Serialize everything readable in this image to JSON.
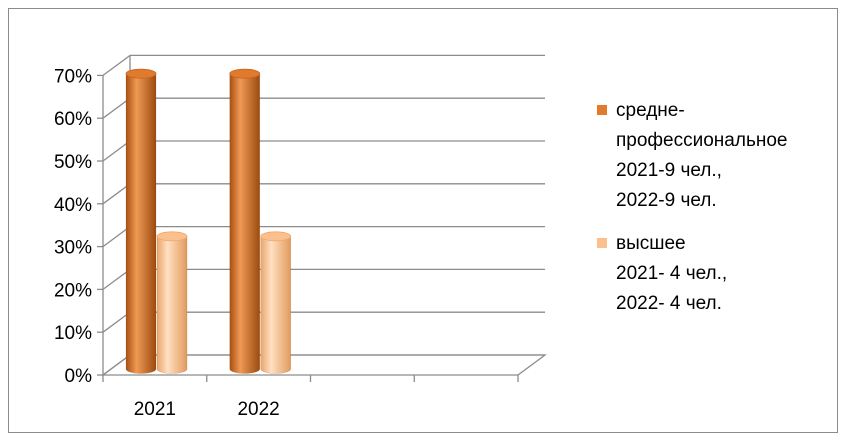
{
  "chart_data": {
    "type": "bar",
    "style": "3d-cylinder",
    "categories": [
      "2021",
      "2022"
    ],
    "series": [
      {
        "name_lines": [
          "средне-",
          "профессиональное",
          "2021-9 чел.,",
          "2022-9 чел."
        ],
        "values": [
          69,
          69
        ],
        "color": "#e07b2d"
      },
      {
        "name_lines": [
          "высшее",
          "2021- 4 чел.,",
          "2022- 4 чел."
        ],
        "values": [
          31,
          31
        ],
        "color": "#fbc08e"
      }
    ],
    "y_ticks": [
      "0%",
      "10%",
      "20%",
      "30%",
      "40%",
      "50%",
      "60%",
      "70%"
    ],
    "ylim": [
      0,
      70
    ],
    "y_unit": "%",
    "grid": true,
    "legend_position": "right",
    "title": "",
    "xlabel": "",
    "ylabel": ""
  }
}
